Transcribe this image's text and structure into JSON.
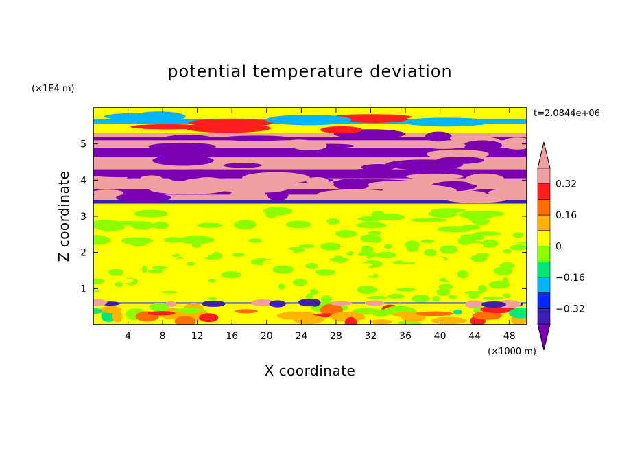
{
  "chart_data": {
    "type": "heatmap",
    "title": "potential temperature deviation",
    "xlabel": "X coordinate",
    "ylabel": "Z coordinate",
    "x_unit": "(×1000 m)",
    "y_unit": "(×1E4 m)",
    "time_label": "t=2.0844e+06",
    "xlim": [
      0,
      50
    ],
    "ylim": [
      0,
      6
    ],
    "x_ticks": [
      4,
      8,
      12,
      16,
      20,
      24,
      28,
      32,
      36,
      40,
      44,
      48
    ],
    "x_tick_labels": [
      "4",
      "8",
      "12",
      "16",
      "20",
      "24",
      "28",
      "32",
      "36",
      "40",
      "44",
      "48"
    ],
    "y_ticks": [
      1,
      2,
      3,
      4,
      5
    ],
    "y_tick_labels": [
      "1",
      "2",
      "3",
      "4",
      "5"
    ],
    "colorbar": {
      "levels": [
        -0.4,
        -0.32,
        -0.24,
        -0.16,
        -0.08,
        0,
        0.08,
        0.16,
        0.24,
        0.32,
        0.4
      ],
      "tick_values": [
        0.32,
        0.16,
        0,
        -0.16,
        -0.32
      ],
      "tick_labels": [
        "0.32",
        "0.16",
        "0",
        "−0.16",
        "−0.32"
      ],
      "colors": [
        "#7b00b4",
        "#3c1eb4",
        "#0028ff",
        "#00b4ff",
        "#00e678",
        "#8cff00",
        "#ffff00",
        "#ffb400",
        "#ff6e00",
        "#ff1e1e",
        "#f0a0a0"
      ]
    },
    "bands": [
      {
        "z": [
          0.0,
          0.58
        ],
        "value": 0.0
      },
      {
        "z": [
          0.58,
          0.62
        ],
        "value": -0.3
      },
      {
        "z": [
          0.62,
          1.7
        ],
        "value": 0.03
      },
      {
        "z": [
          1.7,
          3.35
        ],
        "value": 0.05
      },
      {
        "z": [
          3.35,
          3.45
        ],
        "value": -0.38
      },
      {
        "z": [
          3.45,
          3.6
        ],
        "value": 0.42
      },
      {
        "z": [
          3.6,
          3.75
        ],
        "value": -0.42
      },
      {
        "z": [
          3.75,
          4.05
        ],
        "value": 0.42
      },
      {
        "z": [
          4.05,
          4.3
        ],
        "value": -0.42
      },
      {
        "z": [
          4.3,
          4.65
        ],
        "value": 0.42
      },
      {
        "z": [
          4.65,
          4.9
        ],
        "value": -0.42
      },
      {
        "z": [
          4.9,
          5.1
        ],
        "value": 0.42
      },
      {
        "z": [
          5.1,
          5.2
        ],
        "value": -0.42
      },
      {
        "z": [
          5.2,
          5.3
        ],
        "value": 0.42
      },
      {
        "z": [
          5.3,
          5.55
        ],
        "value": 0.05
      },
      {
        "z": [
          5.55,
          5.7
        ],
        "value": -0.2
      },
      {
        "z": [
          5.7,
          6.0
        ],
        "value": 0.05
      }
    ]
  }
}
